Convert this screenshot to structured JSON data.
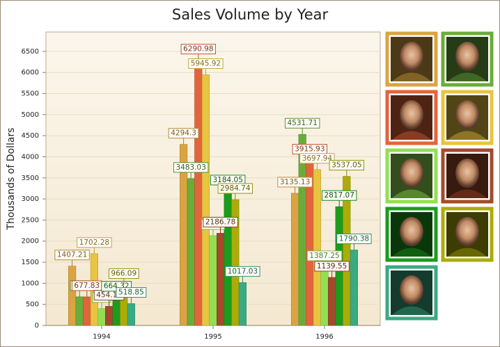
{
  "chart_data": {
    "type": "bar",
    "title": "Sales Volume by Year",
    "y_label": "Thousands of Dollars",
    "categories": [
      "1994",
      "1995",
      "1996"
    ],
    "series": [
      {
        "color": "#d9a441",
        "values": [
          1407.21,
          4294.3,
          3135.13
        ]
      },
      {
        "color": "#6aac3a",
        "values": [
          680,
          3483.03,
          4531.71
        ]
      },
      {
        "color": "#e3643a",
        "values": [
          677.83,
          6290.98,
          3915.93
        ]
      },
      {
        "color": "#e8c440",
        "values": [
          1702.28,
          5945.92,
          3697.94
        ]
      },
      {
        "color": "#92e052",
        "values": [
          400,
          2130,
          1387.25
        ]
      },
      {
        "color": "#a44a2c",
        "values": [
          454.14,
          2186.78,
          1139.55
        ]
      },
      {
        "color": "#1c9c1c",
        "values": [
          664.32,
          3184.05,
          2817.07
        ]
      },
      {
        "color": "#acac08",
        "values": [
          966.09,
          2984.74,
          3537.05
        ]
      },
      {
        "color": "#3aaa82",
        "values": [
          518.85,
          1017.03,
          1790.38
        ]
      }
    ],
    "ylim": [
      0,
      6960
    ],
    "yticks": [
      0,
      500,
      1000,
      1500,
      2000,
      2500,
      3000,
      3500,
      4000,
      4500,
      5000,
      5500,
      6000,
      6500
    ],
    "grid": true
  }
}
